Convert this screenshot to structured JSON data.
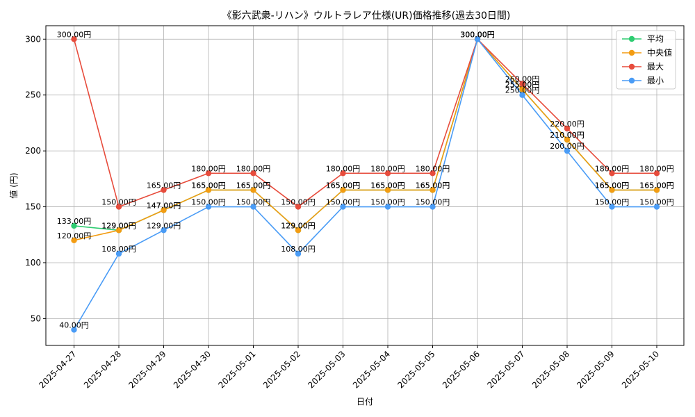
{
  "chart_data": {
    "type": "line",
    "title": "《影六武衆-リハン》ウルトラレア仕様(UR)価格推移(過去30日間)",
    "xlabel": "日付",
    "ylabel": "値 (円)",
    "ylim": [
      26,
      312
    ],
    "yticks": [
      50,
      100,
      150,
      200,
      250,
      300
    ],
    "grid": true,
    "legend_position": "top-right",
    "label_suffix": "円",
    "categories": [
      "2025-04-27",
      "2025-04-28",
      "2025-04-29",
      "2025-04-30",
      "2025-05-01",
      "2025-05-02",
      "2025-05-03",
      "2025-05-04",
      "2025-05-05",
      "2025-05-06",
      "2025-05-07",
      "2025-05-08",
      "2025-05-09",
      "2025-05-10"
    ],
    "series": [
      {
        "name": "平均",
        "color": "#2ecc71",
        "values": [
          133,
          129,
          147,
          165,
          165,
          129,
          165,
          165,
          165,
          300,
          255,
          210,
          165,
          165
        ]
      },
      {
        "name": "中央値",
        "color": "#f39c12",
        "values": [
          120,
          129,
          147,
          165,
          165,
          129,
          165,
          165,
          165,
          300,
          255,
          210,
          165,
          165
        ]
      },
      {
        "name": "最大",
        "color": "#e74c3c",
        "values": [
          300,
          150,
          165,
          180,
          180,
          150,
          180,
          180,
          180,
          300,
          260,
          220,
          180,
          180
        ]
      },
      {
        "name": "最小",
        "color": "#4a9cf6",
        "values": [
          40,
          108,
          129,
          150,
          150,
          108,
          150,
          150,
          150,
          300,
          250,
          200,
          150,
          150
        ]
      }
    ]
  }
}
